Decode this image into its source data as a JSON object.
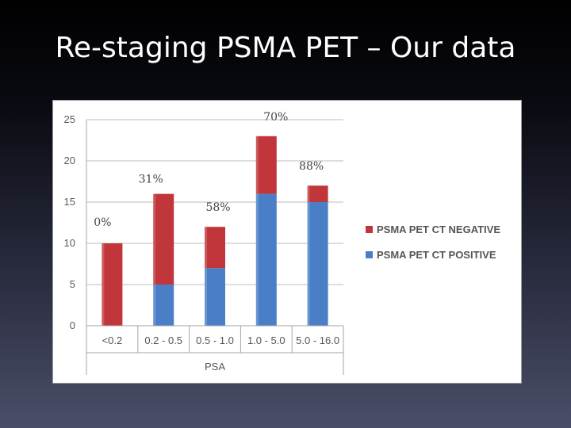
{
  "slide": {
    "title": "Re-staging PSMA PET – Our data"
  },
  "chart_data": {
    "type": "bar",
    "stacked": true,
    "categories": [
      "<0.2",
      "0.2 - 0.5",
      "0.5 - 1.0",
      "1.0 - 5.0",
      "5.0 - 16.0"
    ],
    "series": [
      {
        "name": "PSMA PET CT POSITIVE",
        "values": [
          0,
          5,
          7,
          16,
          15
        ],
        "color": "#4a7fc8"
      },
      {
        "name": "PSMA PET CT NEGATIVE",
        "values": [
          10,
          11,
          5,
          7,
          2
        ],
        "color": "#c0363a"
      }
    ],
    "legend_order": [
      1,
      0
    ],
    "annotations": [
      "0%",
      "31%",
      "58%",
      "70%",
      "88%"
    ],
    "xlabel": "PSA",
    "ylabel": "",
    "ylim": [
      0,
      25
    ],
    "yticks": [
      0,
      5,
      10,
      15,
      20,
      25
    ],
    "grid": true,
    "legend": "right"
  }
}
